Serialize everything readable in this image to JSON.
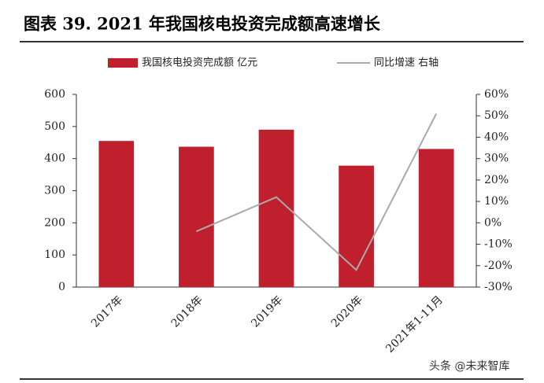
{
  "chart_data": {
    "type": "bar-line",
    "title": "图表 39. 2021 年我国核电投资完成额高速增长",
    "categories": [
      "2017年",
      "2018年",
      "2019年",
      "2020年",
      "2021年1-11月"
    ],
    "series": [
      {
        "name": "我国核电投资完成额 亿元",
        "type": "bar",
        "color": "#c0202e",
        "values": [
          455,
          437,
          490,
          378,
          430
        ]
      },
      {
        "name": "同比增速 右轴",
        "type": "line",
        "axis": "y2",
        "color": "#aaaaaa",
        "values": [
          null,
          -4,
          12,
          -22,
          51
        ]
      }
    ],
    "ylim": [
      0,
      600
    ],
    "yticks": [
      0,
      100,
      200,
      300,
      400,
      500,
      600
    ],
    "y2lim": [
      -30,
      60
    ],
    "y2ticks": [
      {
        "value": -30,
        "label": "-30%"
      },
      {
        "value": -20,
        "label": "-20%"
      },
      {
        "value": -10,
        "label": "-10%"
      },
      {
        "value": 0,
        "label": "0%"
      },
      {
        "value": 10,
        "label": "10%"
      },
      {
        "value": 20,
        "label": "20%"
      },
      {
        "value": 30,
        "label": "30%"
      },
      {
        "value": 40,
        "label": "40%"
      },
      {
        "value": 50,
        "label": "50%"
      },
      {
        "value": 60,
        "label": "60%"
      }
    ],
    "watermark": "头条 @未来智库"
  }
}
